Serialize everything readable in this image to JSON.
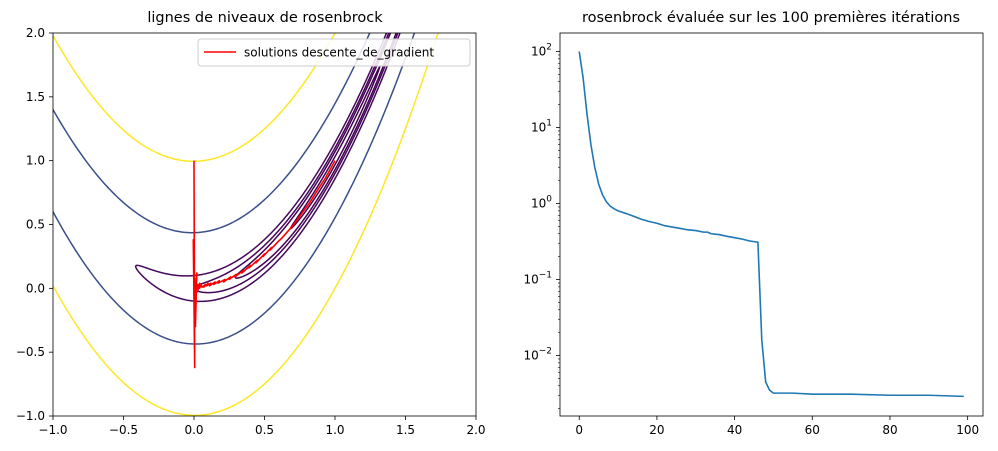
{
  "chart_data": [
    {
      "type": "contour",
      "title": "lignes de niveaux de rosenbrock",
      "xlim": [
        -1.0,
        2.0
      ],
      "ylim": [
        -1.0,
        2.0
      ],
      "xticks": [
        -1.0,
        -0.5,
        0.0,
        0.5,
        1.0,
        1.5,
        2.0
      ],
      "xtick_labels": [
        "−1.0",
        "−0.5",
        "0.0",
        "0.5",
        "1.0",
        "1.5",
        "2.0"
      ],
      "yticks": [
        -1.0,
        -0.5,
        0.0,
        0.5,
        1.0,
        1.5,
        2.0
      ],
      "ytick_labels": [
        "−1.0",
        "−0.5",
        "0.0",
        "0.5",
        "1.0",
        "1.5",
        "2.0"
      ],
      "grid": false,
      "legend_position": "top-right",
      "contour_levels": [
        {
          "level": 0.1,
          "color": "#440154"
        },
        {
          "level": 0.5,
          "color": "#440154"
        },
        {
          "level": 1.0,
          "color": "#450558"
        },
        {
          "level": 2.0,
          "color": "#46085c"
        },
        {
          "level": 20.0,
          "color": "#3b4f8a"
        },
        {
          "level": 100.0,
          "color": "#fde725"
        }
      ],
      "series": [
        {
          "name": "solutions descente_de_gradient",
          "color": "#ff0000",
          "x": [
            0.0,
            0.005,
            -0.005,
            0.01,
            0.02,
            0.01,
            0.005,
            0.015,
            0.005,
            0.02,
            0.01,
            0.03,
            0.02,
            0.04,
            0.03,
            0.05,
            0.04,
            0.06,
            0.08,
            0.07,
            0.1,
            0.09,
            0.12,
            0.11,
            0.15,
            0.14,
            0.18,
            0.17,
            0.22,
            0.21,
            0.26,
            0.25,
            0.3,
            0.29,
            0.35,
            0.34,
            0.4,
            0.39,
            0.45,
            0.44,
            0.5,
            0.49,
            0.55,
            0.54,
            0.6,
            0.62,
            0.66,
            0.7,
            0.74,
            0.78,
            0.82,
            0.86,
            0.9,
            0.93,
            0.96,
            0.98,
            0.99,
            1.0
          ],
          "y": [
            1.0,
            -0.62,
            0.38,
            -0.3,
            0.12,
            -0.1,
            0.08,
            -0.05,
            0.05,
            -0.03,
            0.03,
            -0.01,
            0.02,
            0.0,
            0.03,
            0.01,
            0.04,
            0.01,
            0.03,
            0.01,
            0.04,
            0.02,
            0.04,
            0.02,
            0.05,
            0.03,
            0.06,
            0.04,
            0.07,
            0.05,
            0.09,
            0.07,
            0.11,
            0.09,
            0.14,
            0.12,
            0.18,
            0.16,
            0.22,
            0.2,
            0.27,
            0.25,
            0.32,
            0.3,
            0.37,
            0.39,
            0.44,
            0.49,
            0.55,
            0.61,
            0.67,
            0.74,
            0.81,
            0.86,
            0.92,
            0.96,
            0.98,
            1.0
          ]
        }
      ]
    },
    {
      "type": "line",
      "title": "rosenbrock évaluée sur les 100 premières itérations",
      "xlim": [
        -4.95,
        103.95
      ],
      "ylim": [
        0.0016,
        175
      ],
      "yscale": "log",
      "xticks": [
        0,
        20,
        40,
        60,
        80,
        100
      ],
      "xtick_labels": [
        "0",
        "20",
        "40",
        "60",
        "80",
        "100"
      ],
      "yticks": [
        0.01,
        0.1,
        1,
        10,
        100
      ],
      "ytick_labels": [
        {
          "base": "10",
          "exp": "−2"
        },
        {
          "base": "10",
          "exp": "−1"
        },
        {
          "base": "10",
          "exp": "0"
        },
        {
          "base": "10",
          "exp": "1"
        },
        {
          "base": "10",
          "exp": "2"
        }
      ],
      "grid": false,
      "series": [
        {
          "color": "#1f77b4",
          "x": [
            0,
            1,
            2,
            3,
            4,
            5,
            6,
            7,
            8,
            9,
            10,
            12,
            14,
            16,
            18,
            20,
            22,
            24,
            26,
            28,
            30,
            32,
            33,
            34,
            35,
            36,
            38,
            40,
            42,
            44,
            45,
            46,
            47,
            48,
            49,
            50,
            55,
            60,
            70,
            80,
            90,
            99
          ],
          "y": [
            100,
            45,
            15,
            6,
            3,
            1.8,
            1.3,
            1.05,
            0.92,
            0.85,
            0.8,
            0.74,
            0.68,
            0.62,
            0.58,
            0.55,
            0.51,
            0.49,
            0.47,
            0.45,
            0.44,
            0.42,
            0.42,
            0.4,
            0.395,
            0.39,
            0.37,
            0.355,
            0.34,
            0.32,
            0.315,
            0.31,
            0.016,
            0.0045,
            0.0035,
            0.0032,
            0.0032,
            0.0031,
            0.0031,
            0.003,
            0.003,
            0.0029
          ]
        }
      ]
    }
  ]
}
